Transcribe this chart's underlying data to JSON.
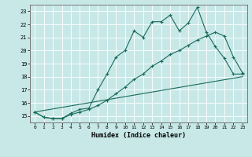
{
  "xlabel": "Humidex (Indice chaleur)",
  "background_color": "#c8e8e8",
  "grid_color": "#ffffff",
  "line_color": "#1a6b5a",
  "xlim": [
    -0.5,
    23.5
  ],
  "ylim": [
    14.5,
    23.5
  ],
  "xticks": [
    0,
    1,
    2,
    3,
    4,
    5,
    6,
    7,
    8,
    9,
    10,
    11,
    12,
    13,
    14,
    15,
    16,
    17,
    18,
    19,
    20,
    21,
    22,
    23
  ],
  "yticks": [
    15,
    16,
    17,
    18,
    19,
    20,
    21,
    22,
    23
  ],
  "series1_x": [
    0,
    1,
    2,
    3,
    4,
    5,
    6,
    7,
    8,
    9,
    10,
    11,
    12,
    13,
    14,
    15,
    16,
    17,
    18,
    19,
    20,
    21,
    22,
    23
  ],
  "series1_y": [
    15.3,
    14.9,
    14.8,
    14.8,
    15.2,
    15.5,
    15.6,
    17.0,
    18.2,
    19.5,
    20.0,
    21.5,
    21.0,
    22.2,
    22.2,
    22.7,
    21.5,
    22.1,
    23.3,
    21.4,
    20.3,
    19.4,
    18.2,
    18.2
  ],
  "series2_x": [
    0,
    1,
    2,
    3,
    4,
    5,
    6,
    7,
    8,
    9,
    10,
    11,
    12,
    13,
    14,
    15,
    16,
    17,
    18,
    19,
    20,
    21,
    22,
    23
  ],
  "series2_y": [
    15.3,
    14.9,
    14.8,
    14.8,
    15.1,
    15.3,
    15.5,
    15.8,
    16.2,
    16.7,
    17.2,
    17.8,
    18.2,
    18.8,
    19.2,
    19.7,
    20.0,
    20.4,
    20.8,
    21.1,
    21.4,
    21.1,
    19.5,
    18.3
  ],
  "series3_x": [
    0,
    23
  ],
  "series3_y": [
    15.3,
    18.0
  ]
}
